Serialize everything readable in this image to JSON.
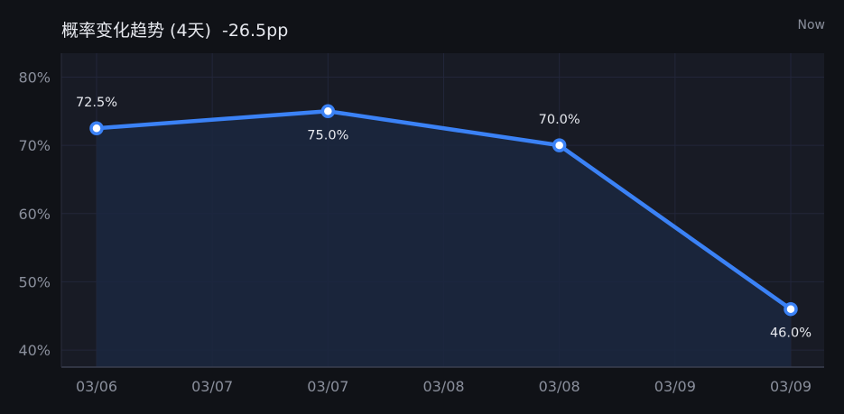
{
  "header": {
    "title": "概率变化趋势 (4天)",
    "change": "-26.5pp",
    "now_label": "Now"
  },
  "colors": {
    "background": "#101217",
    "plot_background": "#181b25",
    "line": "#3b82f6",
    "area": "#1b2740",
    "grid": "#22263a",
    "text": "#e6e8ee",
    "muted": "#8a8f9c"
  },
  "chart_data": {
    "type": "line",
    "title": "概率变化趋势 (4天)",
    "x_ticks": [
      "03/06",
      "03/07",
      "03/07",
      "03/08",
      "03/08",
      "03/09",
      "03/09"
    ],
    "y_ticks": [
      "80%",
      "70%",
      "60%",
      "50%",
      "40%"
    ],
    "y_tick_values": [
      80,
      70,
      60,
      50,
      40
    ],
    "ylim": [
      37.5,
      83.5
    ],
    "grid": true,
    "legend": "none",
    "series": [
      {
        "values": [
          {
            "x": "03/06",
            "y": 72.5,
            "label": "72.5%",
            "label_pos": "above"
          },
          {
            "x": "03/07",
            "y": 75.0,
            "label": "75.0%",
            "label_pos": "below"
          },
          {
            "x": "03/08",
            "y": 70.0,
            "label": "70.0%",
            "label_pos": "above"
          },
          {
            "x": "03/09",
            "y": 46.0,
            "label": "46.0%",
            "label_pos": "below"
          }
        ]
      }
    ]
  }
}
